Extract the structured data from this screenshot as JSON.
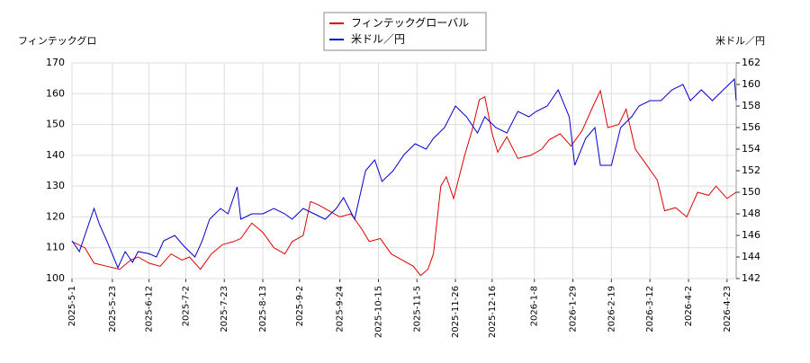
{
  "chart_data": {
    "type": "line",
    "title_left": "フィンテックグロ",
    "title_right": "米ドル／円",
    "xlim": [
      "2025-05-01",
      "2026-04-28"
    ],
    "xticks": [
      {
        "value": "2025-05-01",
        "label": "2025-5-1"
      },
      {
        "value": "2025-05-23",
        "label": "2025-5-23"
      },
      {
        "value": "2025-06-12",
        "label": "2025-6-12"
      },
      {
        "value": "2025-07-02",
        "label": "2025-7-2"
      },
      {
        "value": "2025-07-23",
        "label": "2025-7-23"
      },
      {
        "value": "2025-08-13",
        "label": "2025-8-13"
      },
      {
        "value": "2025-09-02",
        "label": "2025-9-2"
      },
      {
        "value": "2025-09-24",
        "label": "2025-9-24"
      },
      {
        "value": "2025-10-15",
        "label": "2025-10-15"
      },
      {
        "value": "2025-11-05",
        "label": "2025-11-5"
      },
      {
        "value": "2025-11-26",
        "label": "2025-11-26"
      },
      {
        "value": "2025-12-16",
        "label": "2025-12-16"
      },
      {
        "value": "2026-01-08",
        "label": "2026-1-8"
      },
      {
        "value": "2026-01-29",
        "label": "2026-1-29"
      },
      {
        "value": "2026-02-19",
        "label": "2026-2-19"
      },
      {
        "value": "2026-03-12",
        "label": "2026-3-12"
      },
      {
        "value": "2026-04-02",
        "label": "2026-4-2"
      },
      {
        "value": "2026-04-23",
        "label": "2026-4-23"
      }
    ],
    "ylim": [
      100,
      170
    ],
    "yticks": [
      100,
      110,
      120,
      130,
      140,
      150,
      160,
      170
    ],
    "y2lim": [
      142,
      162
    ],
    "y2ticks": [
      142,
      144,
      146,
      148,
      150,
      152,
      154,
      156,
      158,
      160,
      162
    ],
    "grid": true,
    "series": [
      {
        "name": "フィンテックグローバル",
        "color": "#dd0000",
        "axis": "y",
        "x": [
          "2025-05-01",
          "2025-05-08",
          "2025-05-13",
          "2025-05-20",
          "2025-05-27",
          "2025-06-02",
          "2025-06-06",
          "2025-06-12",
          "2025-06-18",
          "2025-06-24",
          "2025-06-30",
          "2025-07-04",
          "2025-07-10",
          "2025-07-16",
          "2025-07-22",
          "2025-07-28",
          "2025-08-01",
          "2025-08-07",
          "2025-08-13",
          "2025-08-19",
          "2025-08-25",
          "2025-08-29",
          "2025-09-04",
          "2025-09-08",
          "2025-09-12",
          "2025-09-18",
          "2025-09-24",
          "2025-09-30",
          "2025-10-06",
          "2025-10-10",
          "2025-10-16",
          "2025-10-22",
          "2025-10-28",
          "2025-11-03",
          "2025-11-07",
          "2025-11-11",
          "2025-11-14",
          "2025-11-18",
          "2025-11-21",
          "2025-11-25",
          "2025-12-01",
          "2025-12-05",
          "2025-12-09",
          "2025-12-12",
          "2025-12-16",
          "2025-12-19",
          "2025-12-24",
          "2025-12-30",
          "2026-01-06",
          "2026-01-12",
          "2026-01-16",
          "2026-01-22",
          "2026-01-28",
          "2026-02-03",
          "2026-02-09",
          "2026-02-13",
          "2026-02-17",
          "2026-02-23",
          "2026-02-27",
          "2026-03-04",
          "2026-03-10",
          "2026-03-16",
          "2026-03-20",
          "2026-03-26",
          "2026-04-01",
          "2026-04-07",
          "2026-04-13",
          "2026-04-17",
          "2026-04-23",
          "2026-04-28"
        ],
        "values": [
          112,
          110,
          105,
          104,
          103,
          106,
          107,
          105,
          104,
          108,
          106,
          107,
          103,
          108,
          111,
          112,
          113,
          118,
          115,
          110,
          108,
          112,
          114,
          125,
          124,
          122,
          120,
          121,
          116,
          112,
          113,
          108,
          106,
          104,
          101,
          103,
          108,
          130,
          133,
          126,
          140,
          148,
          158,
          159,
          147,
          141,
          146,
          139,
          140,
          142,
          145,
          147,
          143,
          148,
          156,
          161,
          149,
          150,
          155,
          142,
          137,
          132,
          122,
          123,
          120,
          128,
          127,
          130,
          126,
          128
        ]
      },
      {
        "name": "米ドル／円",
        "color": "#0000cc",
        "axis": "y2",
        "x": [
          "2025-05-01",
          "2025-05-05",
          "2025-05-09",
          "2025-05-13",
          "2025-05-16",
          "2025-05-20",
          "2025-05-26",
          "2025-05-30",
          "2025-06-03",
          "2025-06-06",
          "2025-06-12",
          "2025-06-16",
          "2025-06-20",
          "2025-06-26",
          "2025-07-01",
          "2025-07-07",
          "2025-07-11",
          "2025-07-15",
          "2025-07-21",
          "2025-07-25",
          "2025-07-30",
          "2025-08-01",
          "2025-08-07",
          "2025-08-13",
          "2025-08-19",
          "2025-08-25",
          "2025-08-29",
          "2025-09-04",
          "2025-09-10",
          "2025-09-16",
          "2025-09-22",
          "2025-09-26",
          "2025-10-02",
          "2025-10-08",
          "2025-10-13",
          "2025-10-17",
          "2025-10-23",
          "2025-10-29",
          "2025-11-04",
          "2025-11-10",
          "2025-11-14",
          "2025-11-20",
          "2025-11-26",
          "2025-12-02",
          "2025-12-08",
          "2025-12-12",
          "2025-12-18",
          "2025-12-24",
          "2025-12-30",
          "2026-01-05",
          "2026-01-09",
          "2026-01-15",
          "2026-01-21",
          "2026-01-27",
          "2026-01-30",
          "2026-02-05",
          "2026-02-10",
          "2026-02-13",
          "2026-02-19",
          "2026-02-24",
          "2026-03-02",
          "2026-03-06",
          "2026-03-12",
          "2026-03-18",
          "2026-03-24",
          "2026-03-30",
          "2026-04-03",
          "2026-04-09",
          "2026-04-15",
          "2026-04-21",
          "2026-04-27",
          "2026-04-28"
        ],
        "values": [
          145.5,
          144.5,
          146.5,
          148.5,
          147,
          145.5,
          143,
          144.5,
          143.5,
          144.5,
          144.3,
          144,
          145.5,
          146,
          145,
          144,
          145.5,
          147.5,
          148.5,
          148,
          150.5,
          147.5,
          148,
          148,
          148.5,
          148,
          147.5,
          148.5,
          148,
          147.5,
          148.5,
          149.5,
          147.5,
          152,
          153,
          151,
          152,
          153.5,
          154.5,
          154,
          155,
          156,
          158,
          157,
          155.5,
          157,
          156,
          155.5,
          157.5,
          157,
          157.5,
          158,
          159.5,
          157,
          152.5,
          155,
          156,
          152.5,
          152.5,
          156,
          157,
          158,
          158.5,
          158.5,
          159.5,
          160,
          158.5,
          159.5,
          158.5,
          159.5,
          160.5,
          158.5
        ]
      }
    ]
  }
}
